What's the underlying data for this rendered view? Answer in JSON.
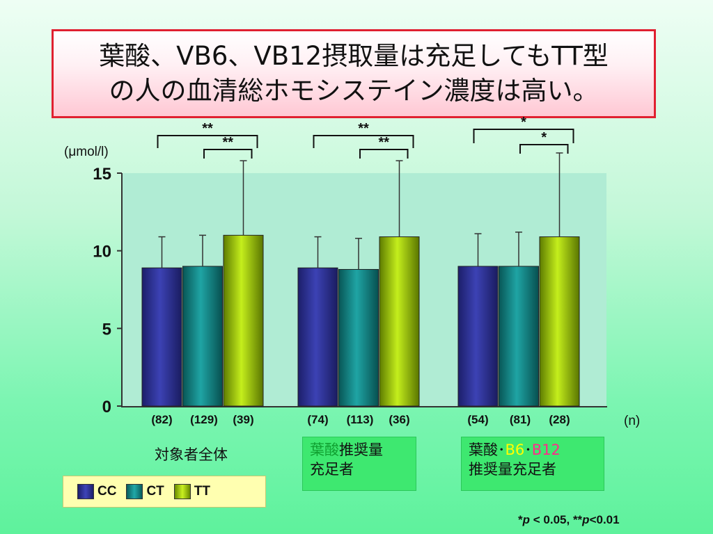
{
  "title": {
    "line1": "葉酸、VB6、VB12摂取量は充足してもTT型",
    "line2": "の人の血清総ホモシステイン濃度は高い。"
  },
  "chart_data": {
    "type": "bar",
    "ylabel": "(μmol/l)",
    "ylim": [
      0,
      15
    ],
    "yticks": [
      "0",
      "5",
      "10",
      "15"
    ],
    "n_label": "(n)",
    "series": [
      {
        "name": "CC",
        "color": "#2c2f8c"
      },
      {
        "name": "CT",
        "color": "#128080"
      },
      {
        "name": "TT",
        "color": "#9ccc10"
      }
    ],
    "groups": [
      {
        "values": [
          8.9,
          9.0,
          11.0
        ],
        "errors": [
          2.0,
          2.0,
          4.8
        ],
        "n": [
          "(82)",
          "(129)",
          "(39)"
        ],
        "sig_outer": "**",
        "sig_inner": "**"
      },
      {
        "values": [
          8.9,
          8.8,
          10.9
        ],
        "errors": [
          2.0,
          2.0,
          4.9
        ],
        "n": [
          "(74)",
          "(113)",
          "(36)"
        ],
        "sig_outer": "**",
        "sig_inner": "**"
      },
      {
        "values": [
          9.0,
          9.0,
          10.9
        ],
        "errors": [
          2.1,
          2.2,
          5.4
        ],
        "n": [
          "(54)",
          "(81)",
          "(28)"
        ],
        "sig_outer": "*",
        "sig_inner": "*"
      }
    ]
  },
  "group_labels": {
    "g1": "対象者全体",
    "g2_a": "葉酸",
    "g2_b": "推奨量",
    "g2_c": "充足者",
    "g3_a": "葉酸",
    "g3_dot1": "･",
    "g3_b6": "B6",
    "g3_dot2": "･",
    "g3_b12": "B12",
    "g3_c": "推奨量充足者"
  },
  "legend": [
    "CC",
    "CT",
    "TT"
  ],
  "footnote": {
    "star1": "*",
    "p1": "p",
    "t1": " < 0.05,  ",
    "star2": "**",
    "p2": "p",
    "t2": "<0.01"
  }
}
